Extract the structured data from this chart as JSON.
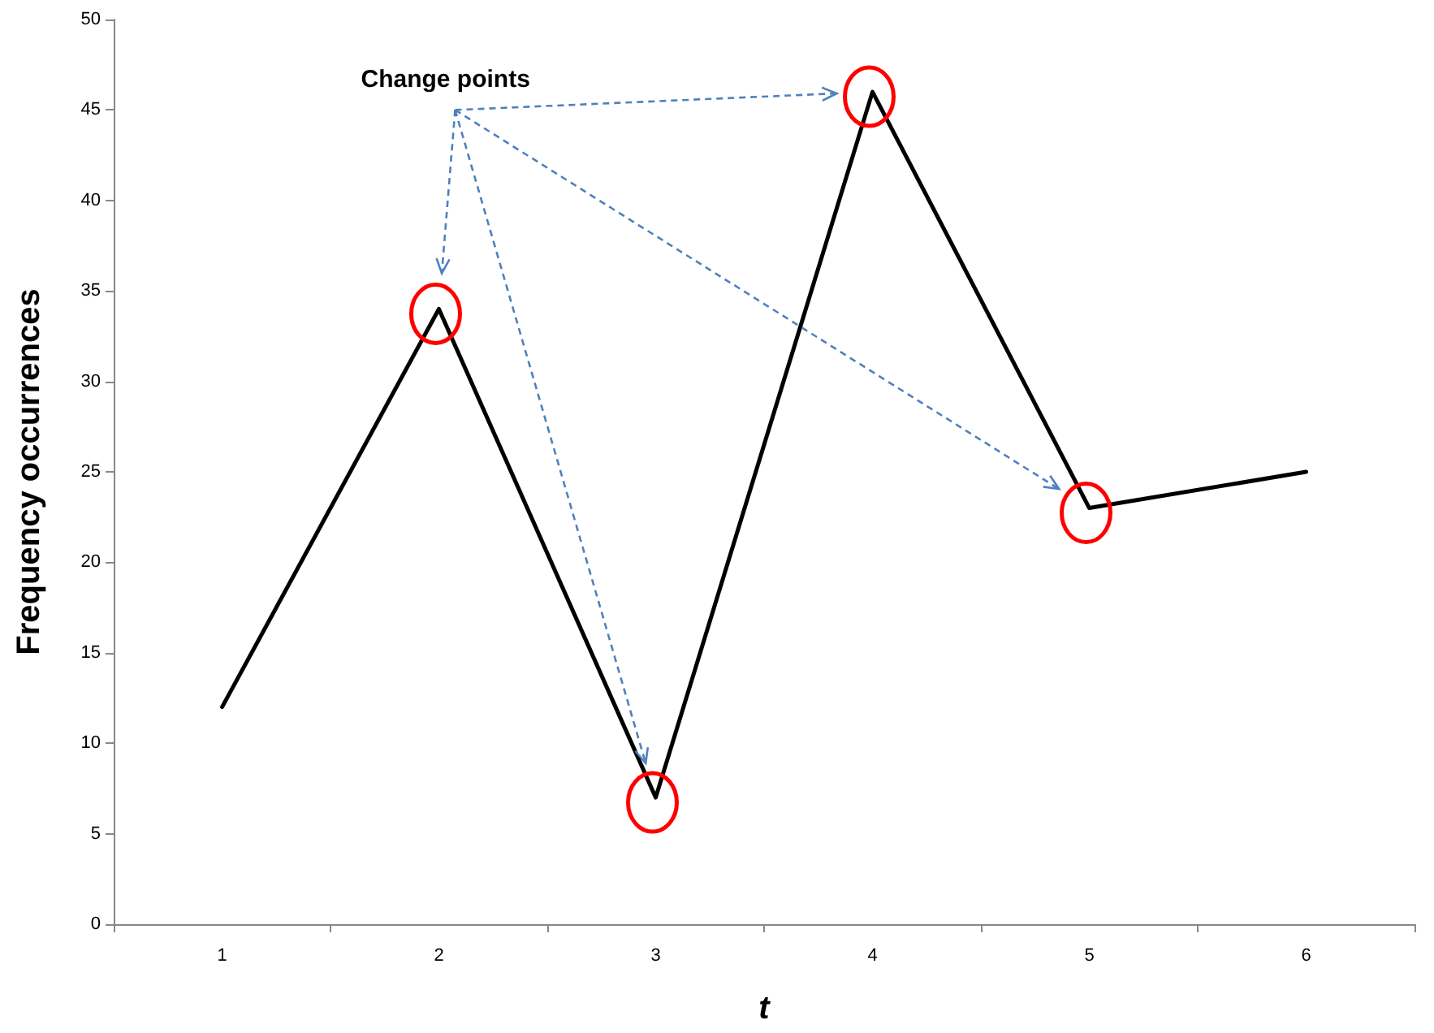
{
  "chart_data": {
    "type": "line",
    "categories": [
      "1",
      "2",
      "3",
      "4",
      "5",
      "6"
    ],
    "series": [
      {
        "color": "#000000",
        "values": [
          12,
          34,
          7,
          46,
          23,
          25
        ]
      }
    ],
    "xlabel": "t",
    "ylabel": "Frequency occurrences",
    "ylim": [
      0,
      50
    ],
    "yticks": [
      0,
      5,
      10,
      15,
      20,
      25,
      30,
      35,
      40,
      45,
      50
    ],
    "annotations": [
      "Change points"
    ],
    "marker": "none",
    "line_style": "solid"
  }
}
